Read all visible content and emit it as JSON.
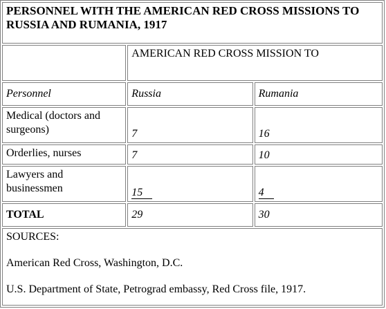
{
  "title": "PERSONNEL WITH THE AMERICAN RED CROSS MISSIONS TO RUSSIA AND RUMANIA, 1917",
  "table": {
    "group_header": "AMERICAN RED CROSS MISSION TO",
    "columns": [
      "Personnel",
      "Russia",
      "Rumania"
    ],
    "rows": [
      [
        "Medical (doctors and surgeons)",
        7,
        16
      ],
      [
        "Orderlies, nurses",
        7,
        10
      ],
      [
        "Lawyers and businessmen",
        15,
        4
      ]
    ],
    "total": [
      "TOTAL",
      29,
      30
    ]
  },
  "sources": {
    "heading": "SOURCES:",
    "items": [
      "American Red Cross, Washington, D.C.",
      "U.S. Department of State, Petrograd embassy, Red Cross file, 1917."
    ]
  }
}
